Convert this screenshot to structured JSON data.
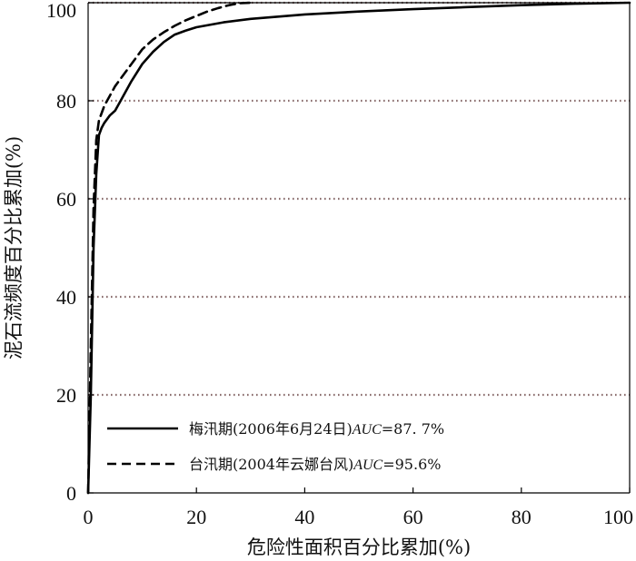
{
  "chart_data": {
    "type": "line",
    "xlabel": "危险性面积百分比累加(%)",
    "ylabel": "泥石流频度百分比累加(%)",
    "xlim": [
      0,
      100
    ],
    "ylim": [
      0,
      100
    ],
    "x_ticks": [
      "0",
      "20",
      "40",
      "60",
      "80",
      "100"
    ],
    "y_ticks": [
      "0",
      "20",
      "40",
      "60",
      "80",
      "100"
    ],
    "grid": "horizontal dotted",
    "gridline_color": "#8a6d6d",
    "legend_position": "bottom-left",
    "series": [
      {
        "name": "梅汛期(2006年6月24日)",
        "auc_label": "AUC",
        "auc_value": "=87. 7%",
        "line_style": "solid",
        "color": "#000000",
        "x": [
          0,
          0.5,
          1,
          1.5,
          2,
          2.5,
          3,
          4,
          5,
          6,
          8,
          10,
          12,
          14,
          16,
          18,
          20,
          25,
          30,
          40,
          50,
          60,
          70,
          80,
          90,
          100
        ],
        "y": [
          0,
          20,
          50,
          65,
          73,
          74.5,
          75.5,
          77,
          78,
          80,
          84,
          87.5,
          90,
          92,
          93.5,
          94.3,
          95,
          96,
          96.7,
          97.6,
          98.2,
          98.7,
          99.1,
          99.5,
          99.8,
          100
        ]
      },
      {
        "name": "台汛期(2004年云娜台风)",
        "auc_label": "AUC",
        "auc_value": "=95.6%",
        "line_style": "dashed",
        "color": "#000000",
        "x": [
          0,
          0.5,
          1,
          1.5,
          2,
          2.5,
          3,
          4,
          5,
          6,
          8,
          10,
          12,
          14,
          16,
          18,
          20,
          22,
          24,
          26,
          28,
          30
        ],
        "y": [
          0,
          30,
          58,
          72,
          76,
          77.5,
          79,
          81,
          83,
          84.5,
          87.5,
          90.5,
          92.5,
          94,
          95.3,
          96.4,
          97.3,
          98.2,
          98.9,
          99.5,
          99.9,
          100
        ]
      }
    ]
  }
}
